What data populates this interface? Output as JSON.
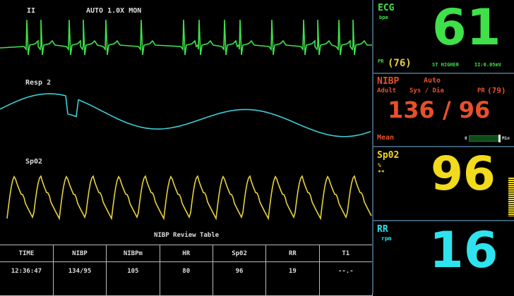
{
  "waveforms": {
    "ecg": {
      "lead": "II",
      "mode": "AUTO 1.0X MON",
      "color": "#3fe04a"
    },
    "resp": {
      "label": "Resp 2",
      "color": "#3ccfd6"
    },
    "spo2": {
      "label": "Sp02",
      "color": "#e6d23a"
    }
  },
  "ecg": {
    "label": "ECG",
    "unit": "bpm",
    "value": "61",
    "pr_label": "PR",
    "pr_value": "(76)",
    "st_label": "ST HIGHER",
    "st_value": "II:0.05mV",
    "color": "#3fe04a"
  },
  "nibp": {
    "label": "NIBP",
    "mode": "Auto",
    "patient": "Adult",
    "sysdia_label": "Sys / Dia",
    "pr_label": "PR",
    "pr_value": "(79)",
    "value": "136 / 96",
    "mean_label": "Mean",
    "bar_min": "0",
    "bar_max_label": "Min",
    "color": "#e8502a"
  },
  "spo2": {
    "label": "Sp02",
    "unit": "%",
    "sub": "**",
    "value": "96",
    "color": "#f2da1c"
  },
  "rr": {
    "label": "RR",
    "unit": "rpm",
    "value": "16",
    "color": "#2fe3ee"
  },
  "review_table": {
    "title": "NIBP Review Table",
    "headers": [
      "TIME",
      "NIBP",
      "NIBPm",
      "HR",
      "Sp02",
      "RR",
      "T1"
    ],
    "rows": [
      [
        "12:36:47",
        "134/95",
        "105",
        "80",
        "96",
        "19",
        "--.-"
      ]
    ]
  }
}
